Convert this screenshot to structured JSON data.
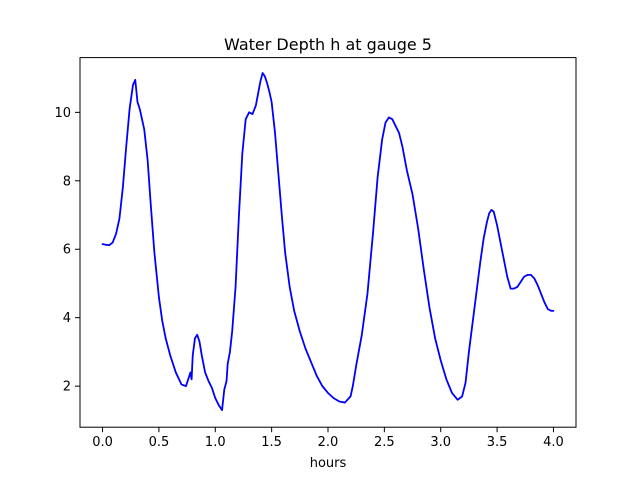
{
  "chart_data": {
    "type": "line",
    "title": "Water Depth h at gauge 5",
    "xlabel": "hours",
    "ylabel": "",
    "xlim": [
      -0.2,
      4.2
    ],
    "ylim": [
      0.8,
      11.6
    ],
    "xticks": [
      0.0,
      0.5,
      1.0,
      1.5,
      2.0,
      2.5,
      3.0,
      3.5,
      4.0
    ],
    "xtick_labels": [
      "0.0",
      "0.5",
      "1.0",
      "1.5",
      "2.0",
      "2.5",
      "3.0",
      "3.5",
      "4.0"
    ],
    "yticks": [
      2,
      4,
      6,
      8,
      10
    ],
    "ytick_labels": [
      "2",
      "4",
      "6",
      "8",
      "10"
    ],
    "grid": false,
    "series": [
      {
        "color": "#0000ff",
        "x": [
          0.0,
          0.03,
          0.06,
          0.09,
          0.12,
          0.15,
          0.18,
          0.21,
          0.24,
          0.27,
          0.29,
          0.31,
          0.33,
          0.35,
          0.37,
          0.4,
          0.43,
          0.46,
          0.5,
          0.53,
          0.56,
          0.6,
          0.65,
          0.7,
          0.74,
          0.78,
          0.79,
          0.8,
          0.82,
          0.84,
          0.86,
          0.88,
          0.91,
          0.94,
          0.97,
          1.0,
          1.03,
          1.06,
          1.08,
          1.1,
          1.11,
          1.13,
          1.15,
          1.18,
          1.21,
          1.24,
          1.27,
          1.3,
          1.33,
          1.36,
          1.38,
          1.4,
          1.42,
          1.44,
          1.46,
          1.48,
          1.5,
          1.53,
          1.56,
          1.59,
          1.62,
          1.66,
          1.7,
          1.75,
          1.8,
          1.85,
          1.9,
          1.95,
          2.0,
          2.05,
          2.1,
          2.15,
          2.2,
          2.22,
          2.25,
          2.3,
          2.35,
          2.4,
          2.44,
          2.48,
          2.51,
          2.54,
          2.57,
          2.6,
          2.63,
          2.66,
          2.7,
          2.75,
          2.8,
          2.85,
          2.9,
          2.95,
          3.0,
          3.05,
          3.1,
          3.15,
          3.19,
          3.22,
          3.25,
          3.3,
          3.35,
          3.38,
          3.41,
          3.43,
          3.45,
          3.47,
          3.5,
          3.53,
          3.56,
          3.59,
          3.62,
          3.65,
          3.68,
          3.71,
          3.74,
          3.77,
          3.8,
          3.83,
          3.86,
          3.89,
          3.92,
          3.95,
          3.98,
          4.0
        ],
        "y": [
          6.15,
          6.13,
          6.12,
          6.2,
          6.45,
          6.9,
          7.8,
          9.0,
          10.1,
          10.8,
          10.95,
          10.3,
          10.1,
          9.8,
          9.5,
          8.6,
          7.2,
          5.9,
          4.6,
          3.9,
          3.4,
          2.9,
          2.4,
          2.05,
          2.0,
          2.4,
          2.2,
          2.9,
          3.4,
          3.5,
          3.3,
          2.9,
          2.4,
          2.15,
          1.95,
          1.65,
          1.45,
          1.3,
          1.9,
          2.15,
          2.65,
          3.0,
          3.6,
          4.9,
          7.0,
          8.8,
          9.8,
          10.0,
          9.95,
          10.2,
          10.55,
          10.9,
          11.15,
          11.05,
          10.85,
          10.6,
          10.3,
          9.4,
          8.2,
          7.0,
          5.9,
          4.9,
          4.2,
          3.6,
          3.1,
          2.7,
          2.3,
          2.0,
          1.8,
          1.65,
          1.55,
          1.52,
          1.7,
          2.0,
          2.6,
          3.5,
          4.7,
          6.5,
          8.1,
          9.2,
          9.7,
          9.85,
          9.8,
          9.6,
          9.4,
          9.0,
          8.3,
          7.6,
          6.6,
          5.4,
          4.3,
          3.4,
          2.75,
          2.2,
          1.8,
          1.6,
          1.7,
          2.1,
          3.0,
          4.3,
          5.6,
          6.3,
          6.8,
          7.05,
          7.15,
          7.1,
          6.7,
          6.2,
          5.7,
          5.2,
          4.85,
          4.85,
          4.9,
          5.05,
          5.2,
          5.25,
          5.25,
          5.15,
          4.95,
          4.7,
          4.45,
          4.25,
          4.2,
          4.2
        ]
      }
    ]
  }
}
